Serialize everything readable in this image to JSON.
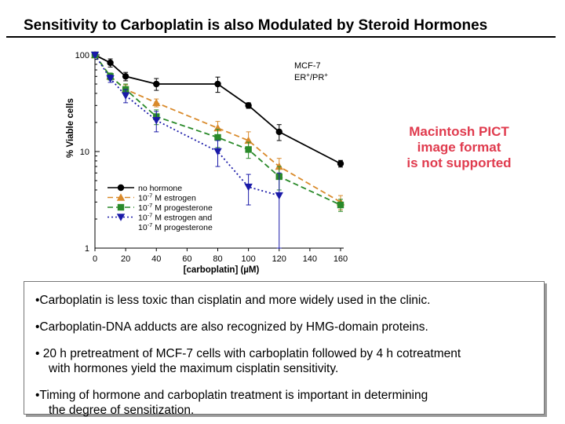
{
  "slide": {
    "title": "Sensitivity to Carboplatin is also Modulated by Steroid Hormones"
  },
  "placeholder_message": [
    "Macintosh PICT",
    "image format",
    "is not supported"
  ],
  "bullets": [
    {
      "lines": [
        "•Carboplatin is less toxic than cisplatin and more widely used in the clinic."
      ]
    },
    {
      "lines": [
        "•Carboplatin-DNA adducts are also recognized by HMG-domain proteins."
      ]
    },
    {
      "lines": [
        "• 20 h pretreatment of MCF-7 cells with carboplatin followed by 4 h cotreatment",
        "with hormones yield the maximum cisplatin sensitivity."
      ]
    },
    {
      "lines": [
        "•Timing of hormone and carboplatin treatment is important in determining",
        "the degree of sensitization."
      ]
    }
  ],
  "colors": {
    "placeholder_text": "#e03b4e",
    "no_hormone": "#000000",
    "estrogen": "#d98a2b",
    "progesterone": "#2a8a2a",
    "estrogen_and_progesterone": "#1a1aa8"
  },
  "chart_data": {
    "type": "line",
    "xlabel": "[carboplatin] (µM)",
    "ylabel": "% Viable cells",
    "xlim": [
      0,
      160
    ],
    "ylim": [
      1,
      100
    ],
    "yscale": "log",
    "xticks": [
      0,
      20,
      40,
      60,
      80,
      100,
      120,
      140,
      160
    ],
    "yticks": [
      1,
      10,
      100
    ],
    "annotation": {
      "line1": "MCF-7",
      "line2_parts": [
        "ER",
        "+",
        "/PR",
        "+"
      ]
    },
    "legend": {
      "placement": "bottom-left",
      "entries": [
        {
          "series": 0,
          "parts": [
            "no hormone"
          ]
        },
        {
          "series": 1,
          "parts": [
            "10",
            "-7",
            " M estrogen"
          ]
        },
        {
          "series": 2,
          "parts": [
            "10",
            "-7",
            " M progesterone"
          ]
        },
        {
          "series": 3,
          "parts": [
            "10",
            "-7",
            " M estrogen and"
          ]
        },
        {
          "series": null,
          "parts": [
            "10",
            "-7",
            " M progesterone"
          ]
        }
      ]
    },
    "series": [
      {
        "name": "no hormone",
        "marker": "circle",
        "dash": "solid",
        "color": "#000000",
        "x": [
          0,
          10,
          20,
          40,
          80,
          100,
          120,
          160
        ],
        "y": [
          100,
          83,
          60,
          50,
          50,
          30,
          16,
          7.5
        ],
        "err": [
          3,
          8,
          6,
          7,
          9,
          2,
          3,
          0.6
        ]
      },
      {
        "name": "10-7 M estrogen",
        "marker": "triangle",
        "dash": "dashed",
        "color": "#d98a2b",
        "x": [
          0,
          10,
          20,
          40,
          80,
          100,
          120,
          160
        ],
        "y": [
          100,
          60,
          44,
          32,
          17.5,
          13,
          7,
          3
        ],
        "err": [
          3,
          5,
          5,
          3,
          3,
          3,
          1.5,
          0.5
        ]
      },
      {
        "name": "10-7 M progesterone",
        "marker": "square",
        "dash": "dashed",
        "color": "#2a8a2a",
        "x": [
          0,
          10,
          20,
          40,
          80,
          100,
          120,
          160
        ],
        "y": [
          100,
          60,
          44,
          23,
          14,
          10.5,
          5.5,
          2.8
        ],
        "err": [
          3,
          5,
          6,
          4,
          3,
          2,
          1.5,
          0.4
        ]
      },
      {
        "name": "10-7 M estrogen and 10-7 M progesterone",
        "marker": "triangle-down",
        "dash": "dotted",
        "color": "#1a1aa8",
        "x": [
          0,
          10,
          20,
          40,
          80,
          100,
          120
        ],
        "y": [
          100,
          57,
          38,
          21,
          10,
          4.3,
          3.5
        ],
        "err": [
          3,
          5,
          6,
          5,
          3,
          1.5,
          2.5
        ]
      }
    ]
  }
}
